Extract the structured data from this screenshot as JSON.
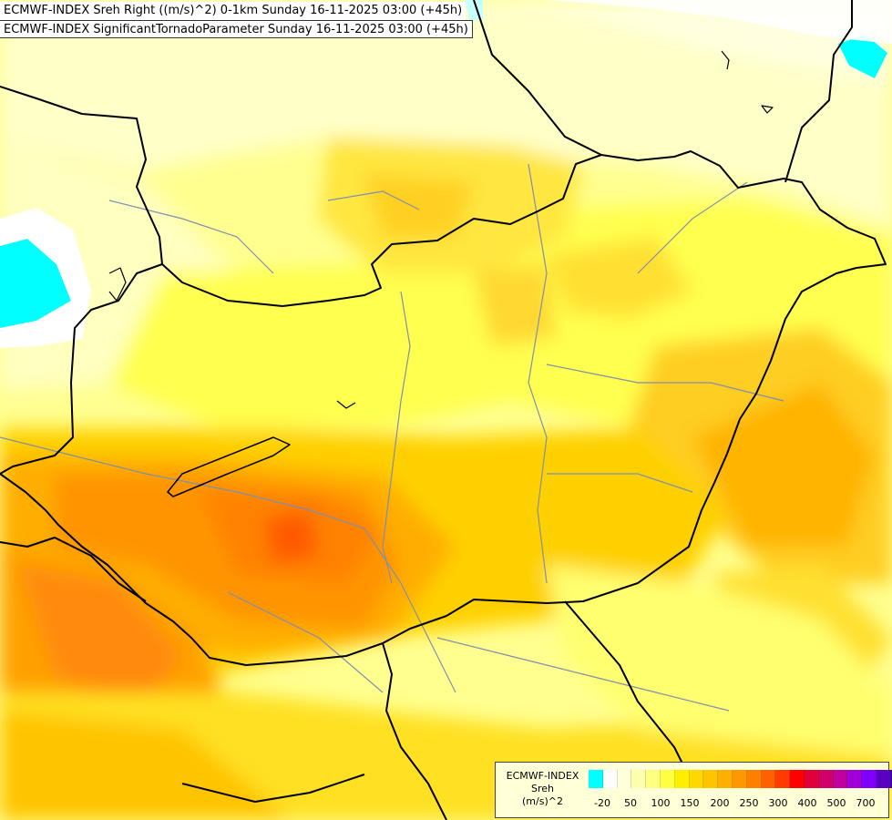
{
  "titles": {
    "line1": "ECMWF-INDEX Sreh Right ((m/s)^2) 0-1km Sunday 16-11-2025 03:00 (+45h)",
    "line2": "ECMWF-INDEX SignificantTornadoParameter Sunday 16-11-2025 03:00 (+45h)"
  },
  "legend": {
    "title1": "ECMWF-INDEX",
    "title2": "Sreh",
    "title3": "(m/s)^2",
    "swatch_colors": [
      "#00ffff",
      "#ffffff",
      "#ffffd8",
      "#ffffb0",
      "#ffff80",
      "#ffff40",
      "#ffee00",
      "#ffd800",
      "#ffc400",
      "#ffb000",
      "#ff9800",
      "#ff8000",
      "#ff6000",
      "#ff3c00",
      "#ff0000",
      "#e0003c",
      "#d0006a",
      "#c000a0",
      "#a000d8",
      "#8000ff",
      "#5a00c0",
      "#3a0090",
      "#000080"
    ],
    "ticks": [
      "-20",
      "50",
      "100",
      "150",
      "200",
      "250",
      "300",
      "400",
      "500",
      "700"
    ]
  },
  "colors": {
    "background": "#ffffc0",
    "border": "#000000",
    "river": "#7f8fb0"
  }
}
